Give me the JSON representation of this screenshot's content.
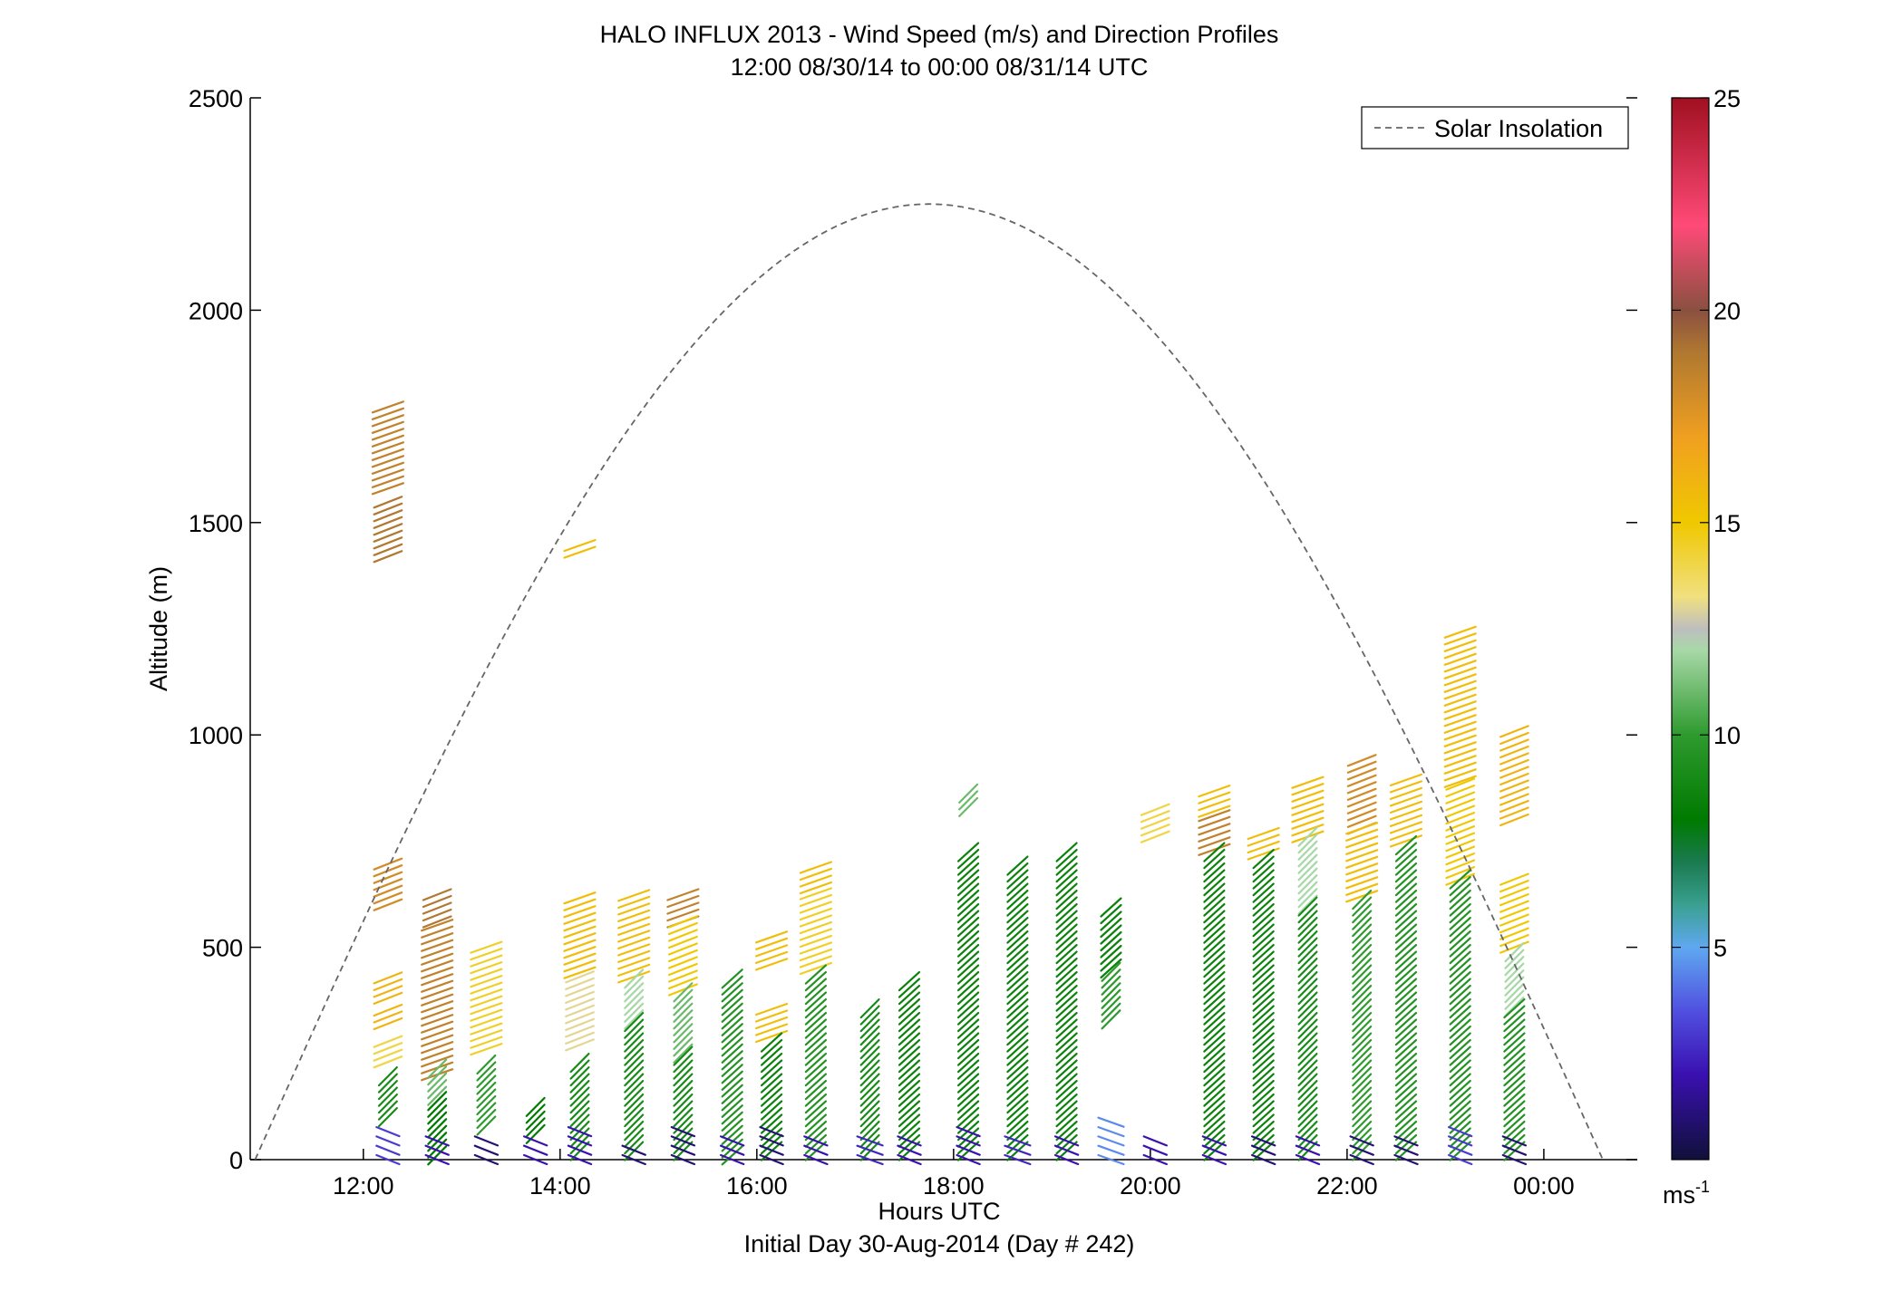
{
  "chart_data": {
    "type": "wind_barb_profile",
    "title": "HALO INFLUX 2013 - Wind Speed (m/s) and Direction Profiles",
    "subtitle": "12:00 08/30/14 to 00:00 08/31/14  UTC",
    "xlabel": "Hours UTC",
    "xlabel2": "Initial Day 30-Aug-2014 (Day # 242)",
    "ylabel": "Altitude (m)",
    "xlim": [
      10.85,
      24.95
    ],
    "ylim": [
      0,
      2500
    ],
    "x_ticks": [
      {
        "value": 12,
        "label": "12:00"
      },
      {
        "value": 14,
        "label": "14:00"
      },
      {
        "value": 16,
        "label": "16:00"
      },
      {
        "value": 18,
        "label": "18:00"
      },
      {
        "value": 20,
        "label": "20:00"
      },
      {
        "value": 22,
        "label": "22:00"
      },
      {
        "value": 24,
        "label": "00:00"
      }
    ],
    "y_ticks": [
      0,
      500,
      1000,
      1500,
      2000,
      2500
    ],
    "legend": {
      "entry": "Solar Insolation",
      "position": "top-right",
      "style": "dashed gray line"
    },
    "colorbar": {
      "min": 0,
      "max": 25,
      "ticks": [
        5,
        10,
        15,
        20,
        25
      ],
      "unit": "ms-1"
    },
    "solar_insolation": {
      "start_hour": 10.9,
      "end_hour": 24.6,
      "peak_hour": 17.75,
      "peak_altitude": 2250
    },
    "profiles": [
      {
        "time": 12.25,
        "segments": [
          [
            1420,
            1560,
            19
          ],
          [
            1580,
            1780,
            18.5
          ],
          [
            600,
            700,
            18
          ],
          [
            380,
            430,
            16
          ],
          [
            320,
            360,
            16
          ],
          [
            230,
            280,
            14
          ],
          [
            100,
            210,
            9
          ],
          [
            0,
            80,
            3
          ]
        ]
      },
      {
        "time": 12.75,
        "segments": [
          [
            560,
            630,
            19
          ],
          [
            200,
            560,
            18.5
          ],
          [
            150,
            220,
            11
          ],
          [
            10,
            150,
            8
          ],
          [
            0,
            60,
            2
          ]
        ]
      },
      {
        "time": 13.25,
        "segments": [
          [
            260,
            500,
            14.5
          ],
          [
            80,
            230,
            10
          ],
          [
            0,
            60,
            1
          ]
        ]
      },
      {
        "time": 13.75,
        "segments": [
          [
            60,
            130,
            8
          ],
          [
            0,
            60,
            2
          ]
        ]
      },
      {
        "time": 14.2,
        "segments": [
          [
            1430,
            1460,
            15.5
          ],
          [
            440,
            630,
            15.5
          ],
          [
            270,
            440,
            13
          ],
          [
            20,
            230,
            9
          ],
          [
            0,
            70,
            2
          ]
        ]
      },
      {
        "time": 14.75,
        "segments": [
          [
            430,
            630,
            15.5
          ],
          [
            330,
            430,
            12
          ],
          [
            20,
            330,
            9
          ],
          [
            0,
            40,
            1
          ]
        ]
      },
      {
        "time": 15.25,
        "segments": [
          [
            560,
            630,
            18.5
          ],
          [
            400,
            560,
            15
          ],
          [
            250,
            400,
            11
          ],
          [
            20,
            250,
            9
          ],
          [
            0,
            70,
            1
          ]
        ]
      },
      {
        "time": 15.75,
        "segments": [
          [
            10,
            430,
            9.5
          ],
          [
            0,
            60,
            2
          ]
        ]
      },
      {
        "time": 16.15,
        "segments": [
          [
            460,
            530,
            15.5
          ],
          [
            290,
            360,
            15.5
          ],
          [
            20,
            290,
            8.5
          ],
          [
            0,
            70,
            1
          ]
        ]
      },
      {
        "time": 16.6,
        "segments": [
          [
            640,
            700,
            15.5
          ],
          [
            450,
            640,
            14.5
          ],
          [
            20,
            450,
            9.5
          ],
          [
            0,
            60,
            2
          ]
        ]
      },
      {
        "time": 17.15,
        "segments": [
          [
            20,
            370,
            9
          ],
          [
            0,
            60,
            2.5
          ]
        ]
      },
      {
        "time": 17.55,
        "segments": [
          [
            20,
            430,
            8.5
          ],
          [
            0,
            60,
            2
          ]
        ]
      },
      {
        "time": 18.15,
        "segments": [
          [
            830,
            870,
            11
          ],
          [
            20,
            730,
            8.5
          ],
          [
            0,
            80,
            2
          ]
        ]
      },
      {
        "time": 18.65,
        "segments": [
          [
            20,
            700,
            8.5
          ],
          [
            0,
            60,
            2.5
          ]
        ]
      },
      {
        "time": 19.15,
        "segments": [
          [
            20,
            730,
            8.5
          ],
          [
            0,
            60,
            2
          ]
        ]
      },
      {
        "time": 19.6,
        "segments": [
          [
            450,
            600,
            8.5
          ],
          [
            330,
            450,
            10
          ],
          [
            0,
            100,
            4.5
          ]
        ]
      },
      {
        "time": 20.05,
        "segments": [
          [
            760,
            830,
            14
          ],
          [
            0,
            60,
            2
          ]
        ]
      },
      {
        "time": 20.65,
        "segments": [
          [
            820,
            870,
            15.5
          ],
          [
            730,
            820,
            18.5
          ],
          [
            20,
            730,
            8.5
          ],
          [
            0,
            60,
            2
          ]
        ]
      },
      {
        "time": 21.15,
        "segments": [
          [
            720,
            770,
            15.5
          ],
          [
            20,
            720,
            8.5
          ],
          [
            0,
            50,
            1
          ]
        ]
      },
      {
        "time": 21.6,
        "segments": [
          [
            760,
            900,
            15.5
          ],
          [
            600,
            760,
            12
          ],
          [
            20,
            600,
            9
          ],
          [
            0,
            50,
            2
          ]
        ]
      },
      {
        "time": 22.15,
        "segments": [
          [
            780,
            940,
            18
          ],
          [
            620,
            780,
            15.5
          ],
          [
            20,
            620,
            10
          ],
          [
            0,
            50,
            1
          ]
        ]
      },
      {
        "time": 22.6,
        "segments": [
          [
            750,
            900,
            15.5
          ],
          [
            20,
            750,
            9.5
          ],
          [
            0,
            50,
            1
          ]
        ]
      },
      {
        "time": 23.15,
        "segments": [
          [
            890,
            1250,
            15.5
          ],
          [
            660,
            890,
            15
          ],
          [
            20,
            660,
            9.5
          ],
          [
            0,
            80,
            3
          ]
        ]
      },
      {
        "time": 23.7,
        "segments": [
          [
            800,
            1010,
            16
          ],
          [
            500,
            660,
            15
          ],
          [
            360,
            500,
            12
          ],
          [
            20,
            360,
            9.5
          ],
          [
            0,
            60,
            1
          ]
        ]
      }
    ]
  }
}
